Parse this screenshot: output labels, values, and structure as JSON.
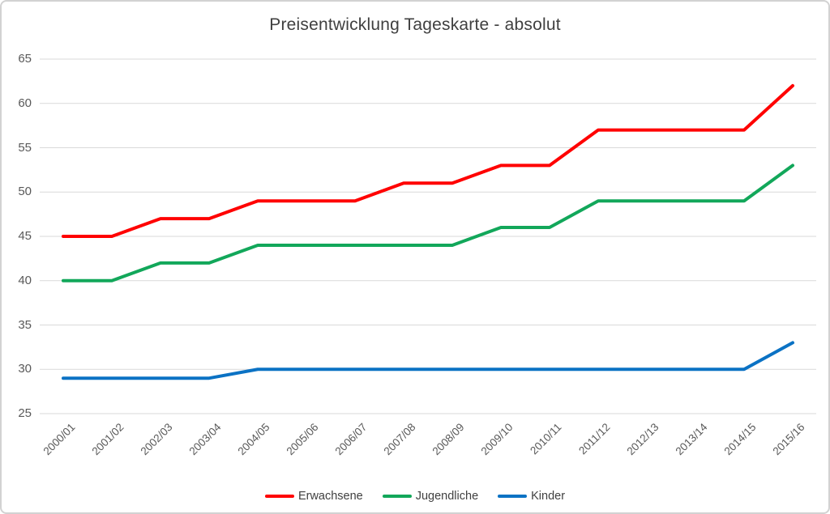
{
  "chart_data": {
    "type": "line",
    "title": "Preisentwicklung Tageskarte - absolut",
    "xlabel": "",
    "ylabel": "",
    "categories": [
      "2000/01",
      "2001/02",
      "2002/03",
      "2003/04",
      "2004/05",
      "2005/06",
      "2006/07",
      "2007/08",
      "2008/09",
      "2009/10",
      "2010/11",
      "2011/12",
      "2012/13",
      "2013/14",
      "2014/15",
      "2015/16"
    ],
    "series": [
      {
        "name": "Erwachsene",
        "color": "#ff0000",
        "values": [
          45,
          45,
          47,
          47,
          49,
          49,
          49,
          51,
          51,
          53,
          53,
          57,
          57,
          57,
          57,
          62
        ]
      },
      {
        "name": "Jugendliche",
        "color": "#12a75a",
        "values": [
          40,
          40,
          42,
          42,
          44,
          44,
          44,
          44,
          44,
          46,
          46,
          49,
          49,
          49,
          49,
          53
        ]
      },
      {
        "name": "Kinder",
        "color": "#0b72c4",
        "values": [
          29,
          29,
          29,
          29,
          30,
          30,
          30,
          30,
          30,
          30,
          30,
          30,
          30,
          30,
          30,
          33
        ]
      }
    ],
    "ylim": [
      25,
      65
    ],
    "yticks": [
      65,
      60,
      55,
      50,
      45,
      40,
      35,
      30,
      25
    ],
    "grid": "horizontal",
    "legend_position": "bottom",
    "colors": {
      "gridline": "#d9d9d9",
      "title_text": "#404040",
      "axis_text": "#595959",
      "frame_border": "#d2d2d2",
      "background": "#ffffff"
    }
  }
}
